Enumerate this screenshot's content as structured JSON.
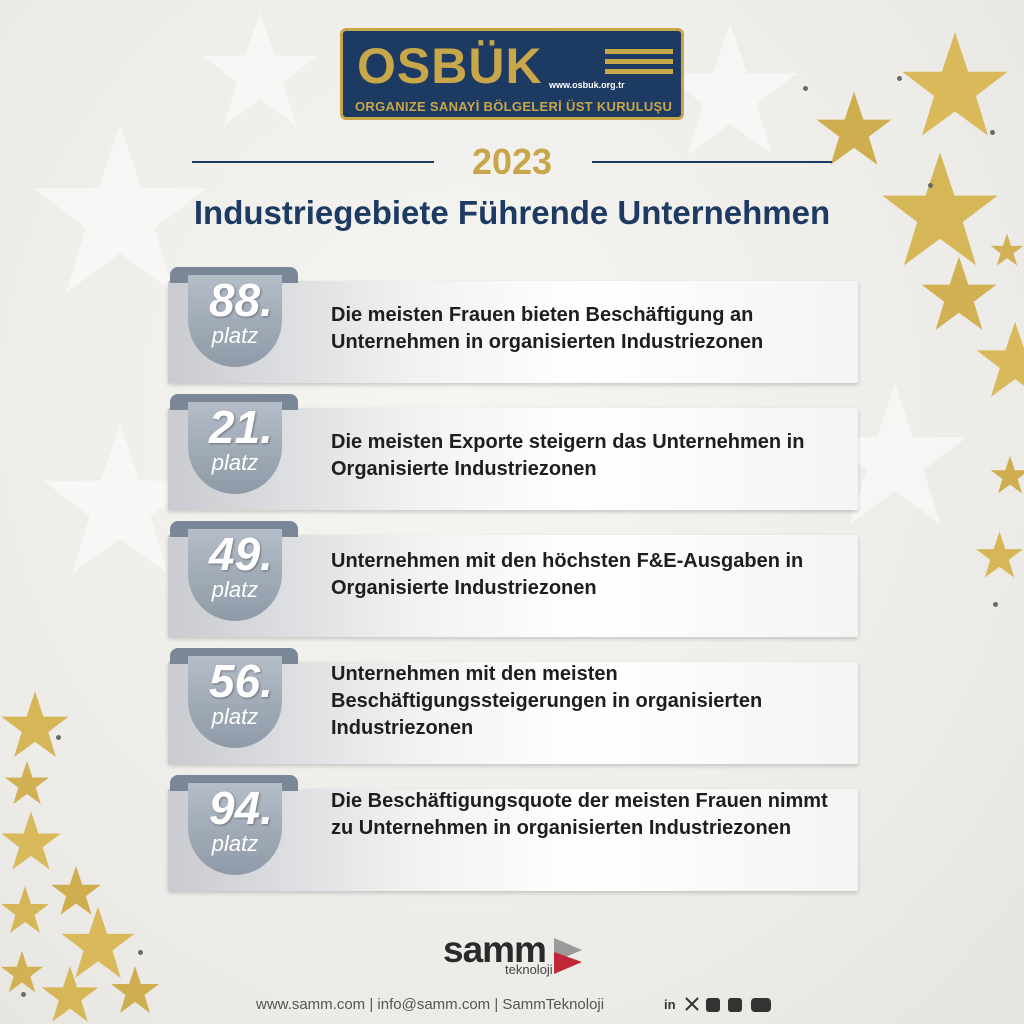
{
  "logo": {
    "name": "OSBÜK",
    "url": "www.osbuk.org.tr",
    "subtitle": "ORGANIZE SANAYİ BÖLGELERİ ÜST KURULUŞU"
  },
  "year": "2023",
  "title": "Industriegebiete Führende Unternehmen",
  "rankings": [
    {
      "rank": "88.",
      "unit": "platz",
      "text": "Die meisten Frauen bieten Beschäftigung an Unternehmen in organisierten Industriezonen"
    },
    {
      "rank": "21.",
      "unit": "platz",
      "text": "Die meisten Exporte steigern das Unternehmen in Organisierte Industriezonen"
    },
    {
      "rank": "49.",
      "unit": "platz",
      "text": "Unternehmen mit den höchsten F&E-Ausgaben in Organisierte Industriezonen"
    },
    {
      "rank": "56.",
      "unit": "platz",
      "text": "Unternehmen mit den meisten Beschäftigungssteigerungen in organisierten Industriezonen"
    },
    {
      "rank": "94.",
      "unit": "platz",
      "text": "Die Beschäftigungsquote der meisten Frauen nimmt zu Unternehmen in organisierten Industriezonen"
    }
  ],
  "brand": {
    "name": "samm",
    "sub": "teknoloji"
  },
  "footer": {
    "contact": "www.samm.com | info@samm.com | SammTeknoloji"
  },
  "social": [
    "linkedin-icon",
    "x-icon",
    "instagram-icon",
    "facebook-icon",
    "youtube-icon"
  ],
  "colors": {
    "navy": "#1d3a63",
    "gold": "#c8a64a",
    "badge": "#8f9aa8"
  }
}
